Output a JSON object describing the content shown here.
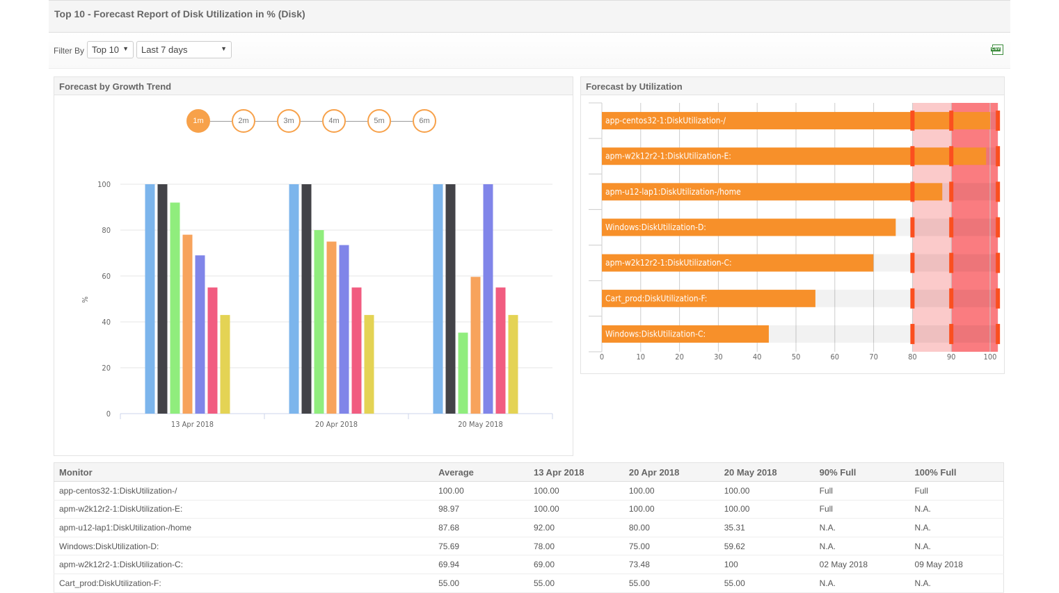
{
  "header": {
    "title": "Top 10 - Forecast Report of Disk Utilization in % (Disk)"
  },
  "filter": {
    "label": "Filter By",
    "top_select": "Top 10",
    "period_select": "Last 7 days",
    "export_icon": "csv-export-icon",
    "export_label": "CSV"
  },
  "growth_panel": {
    "title": "Forecast by Growth Trend",
    "steps": [
      "1m",
      "2m",
      "3m",
      "4m",
      "5m",
      "6m"
    ],
    "active_step": "1m"
  },
  "util_panel": {
    "title": "Forecast by Utilization"
  },
  "chart_data": [
    {
      "type": "bar",
      "ylabel": "%",
      "ylim": [
        0,
        100
      ],
      "yticks": [
        0,
        20,
        40,
        60,
        80,
        100
      ],
      "grid": true,
      "categories": [
        "13 Apr 2018",
        "20 Apr 2018",
        "20 May 2018"
      ],
      "colors": [
        "#7cb5ec",
        "#434348",
        "#90ed7d",
        "#f7a35c",
        "#8085e9",
        "#f15c80",
        "#e4d354"
      ],
      "series": [
        {
          "values": [
            100,
            100,
            100
          ]
        },
        {
          "values": [
            100,
            100,
            100
          ]
        },
        {
          "values": [
            92,
            80,
            35.31
          ]
        },
        {
          "values": [
            78,
            75,
            59.62
          ]
        },
        {
          "values": [
            69,
            73.48,
            100
          ]
        },
        {
          "values": [
            55,
            55,
            55
          ]
        },
        {
          "values": [
            43,
            43,
            43
          ]
        }
      ]
    },
    {
      "type": "bar",
      "orientation": "horizontal",
      "xlim": [
        0,
        100
      ],
      "xticks": [
        0,
        10,
        20,
        30,
        40,
        50,
        60,
        70,
        80,
        90,
        100
      ],
      "grid": true,
      "bar_color": "#f7902a",
      "threshold_warning": 80,
      "threshold_critical": 90,
      "warning_band_color": "#fbcaca",
      "critical_band_color": "#fa7c80",
      "marker_color": "#fb4f1f",
      "categories": [
        "app-centos32-1:DiskUtilization-/",
        "apm-w2k12r2-1:DiskUtilization-E:",
        "apm-u12-lap1:DiskUtilization-/home",
        "Windows:DiskUtilization-D:",
        "apm-w2k12r2-1:DiskUtilization-C:",
        "Cart_prod:DiskUtilization-F:",
        "Windows:DiskUtilization-C:"
      ],
      "values": [
        100,
        98.97,
        87.68,
        75.69,
        69.94,
        55,
        43
      ]
    }
  ],
  "table": {
    "columns": [
      "Monitor",
      "Average",
      "13 Apr 2018",
      "20 Apr 2018",
      "20 May 2018",
      "90% Full",
      "100% Full"
    ],
    "rows": [
      [
        "app-centos32-1:DiskUtilization-/",
        "100.00",
        "100.00",
        "100.00",
        "100.00",
        "Full",
        "Full"
      ],
      [
        "apm-w2k12r2-1:DiskUtilization-E:",
        "98.97",
        "100.00",
        "100.00",
        "100.00",
        "Full",
        "N.A."
      ],
      [
        "apm-u12-lap1:DiskUtilization-/home",
        "87.68",
        "92.00",
        "80.00",
        "35.31",
        "N.A.",
        "N.A."
      ],
      [
        "Windows:DiskUtilization-D:",
        "75.69",
        "78.00",
        "75.00",
        "59.62",
        "N.A.",
        "N.A."
      ],
      [
        "apm-w2k12r2-1:DiskUtilization-C:",
        "69.94",
        "69.00",
        "73.48",
        "100",
        "02 May 2018",
        "09 May 2018"
      ],
      [
        "Cart_prod:DiskUtilization-F:",
        "55.00",
        "55.00",
        "55.00",
        "55.00",
        "N.A.",
        "N.A."
      ]
    ]
  }
}
